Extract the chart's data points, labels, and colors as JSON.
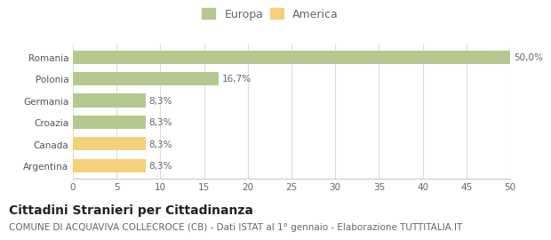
{
  "categories": [
    "Romania",
    "Polonia",
    "Germania",
    "Croazia",
    "Canada",
    "Argentina"
  ],
  "values": [
    50.0,
    16.7,
    8.3,
    8.3,
    8.3,
    8.3
  ],
  "colors": [
    "#b5c98e",
    "#b5c98e",
    "#b5c98e",
    "#b5c98e",
    "#f5d07a",
    "#f5d07a"
  ],
  "labels": [
    "50,0%",
    "16,7%",
    "8,3%",
    "8,3%",
    "8,3%",
    "8,3%"
  ],
  "legend": [
    {
      "label": "Europa",
      "color": "#b5c98e"
    },
    {
      "label": "America",
      "color": "#f5d07a"
    }
  ],
  "xlim": [
    0,
    50
  ],
  "xticks": [
    0,
    5,
    10,
    15,
    20,
    25,
    30,
    35,
    40,
    45,
    50
  ],
  "title": "Cittadini Stranieri per Cittadinanza",
  "subtitle": "COMUNE DI ACQUAVIVA COLLECROCE (CB) - Dati ISTAT al 1° gennaio - Elaborazione TUTTITALIA.IT",
  "background_color": "#ffffff",
  "grid_color": "#deded0",
  "bar_height": 0.62,
  "title_fontsize": 10,
  "subtitle_fontsize": 7.5,
  "label_fontsize": 7.5,
  "tick_fontsize": 7.5,
  "legend_fontsize": 9,
  "legend_marker_size": 12
}
